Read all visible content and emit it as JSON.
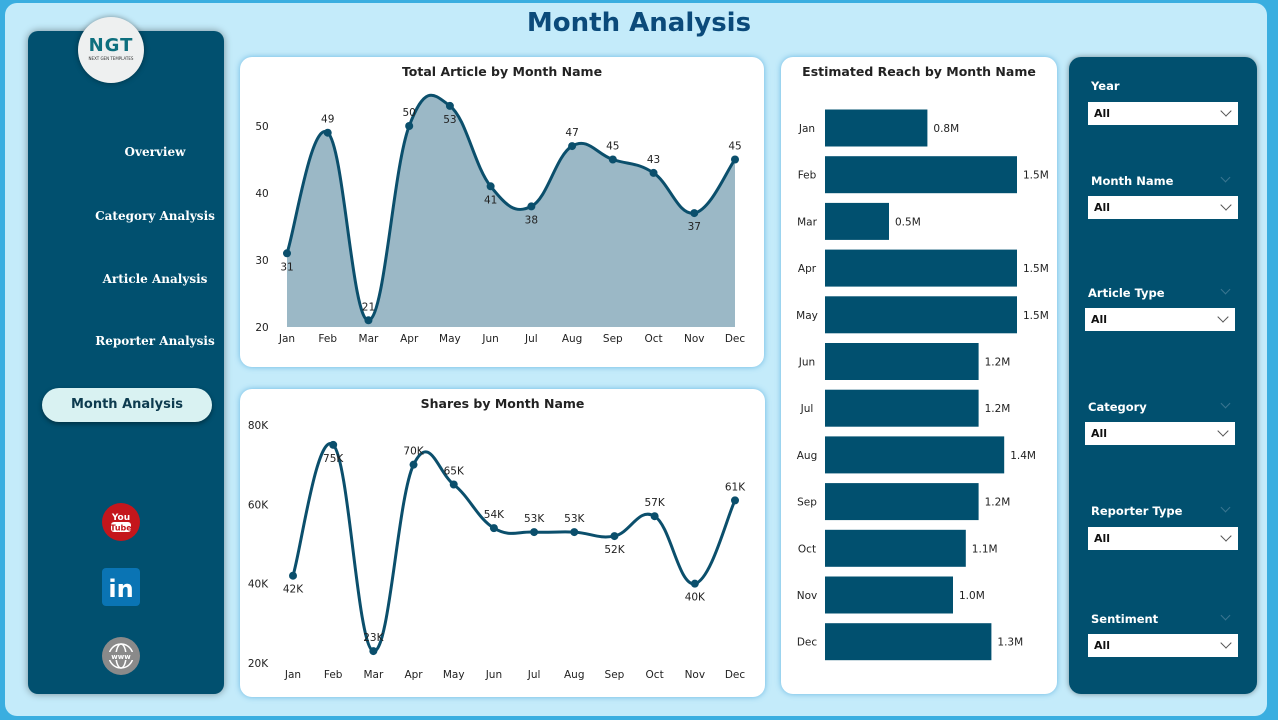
{
  "header": {
    "title": "Month Analysis"
  },
  "logo": {
    "text": "NGT",
    "subtitle": "NEXT GEN TEMPLATES"
  },
  "nav": [
    "Overview",
    "Category Analysis",
    "Article Analysis",
    "Reporter Analysis",
    "Month Analysis"
  ],
  "active_nav": "Month Analysis",
  "social": [
    "youtube-icon",
    "linkedin-icon",
    "globe-www-icon"
  ],
  "colors": {
    "primary": "#01506f",
    "area": "#9bb8c6",
    "line": "#0b4f6c",
    "panel": "#c4ebfa"
  },
  "chart_data": [
    {
      "type": "area",
      "title": "Total Article by Month Name",
      "categories": [
        "Jan",
        "Feb",
        "Mar",
        "Apr",
        "May",
        "Jun",
        "Jul",
        "Aug",
        "Sep",
        "Oct",
        "Nov",
        "Dec"
      ],
      "values": [
        31,
        49,
        21,
        50,
        53,
        41,
        38,
        47,
        45,
        43,
        37,
        45
      ],
      "labels": [
        "31",
        "49",
        "21",
        "50",
        "53",
        "41",
        "38",
        "47",
        "45",
        "43",
        "37",
        "45"
      ],
      "yticks": [
        "20",
        "30",
        "40",
        "50"
      ],
      "ylim": [
        20,
        50
      ]
    },
    {
      "type": "line",
      "title": "Shares by Month Name",
      "categories": [
        "Jan",
        "Feb",
        "Mar",
        "Apr",
        "May",
        "Jun",
        "Jul",
        "Aug",
        "Sep",
        "Oct",
        "Nov",
        "Dec"
      ],
      "values": [
        42000,
        75000,
        23000,
        70000,
        65000,
        54000,
        53000,
        53000,
        52000,
        57000,
        40000,
        61000
      ],
      "labels": [
        "42K",
        "75K",
        "23K",
        "70K",
        "65K",
        "54K",
        "53K",
        "53K",
        "52K",
        "57K",
        "40K",
        "61K"
      ],
      "yticks": [
        "20K",
        "40K",
        "60K",
        "80K"
      ],
      "ylim": [
        20000,
        80000
      ]
    },
    {
      "type": "bar",
      "orientation": "horizontal",
      "title": "Estimated Reach by Month Name",
      "categories": [
        "Jan",
        "Feb",
        "Mar",
        "Apr",
        "May",
        "Jun",
        "Jul",
        "Aug",
        "Sep",
        "Oct",
        "Nov",
        "Dec"
      ],
      "values": [
        0.8,
        1.5,
        0.5,
        1.5,
        1.5,
        1.2,
        1.2,
        1.4,
        1.2,
        1.1,
        1.0,
        1.3
      ],
      "labels": [
        "0.8M",
        "1.5M",
        "0.5M",
        "1.5M",
        "1.5M",
        "1.2M",
        "1.2M",
        "1.4M",
        "1.2M",
        "1.1M",
        "1.0M",
        "1.3M"
      ],
      "unit": "M"
    }
  ],
  "filters": [
    {
      "label": "Year",
      "value": "All"
    },
    {
      "label": "Month Name",
      "value": "All"
    },
    {
      "label": "Article Type",
      "value": "All"
    },
    {
      "label": "Category",
      "value": "All"
    },
    {
      "label": "Reporter Type",
      "value": "All"
    },
    {
      "label": "Sentiment",
      "value": "All"
    }
  ]
}
